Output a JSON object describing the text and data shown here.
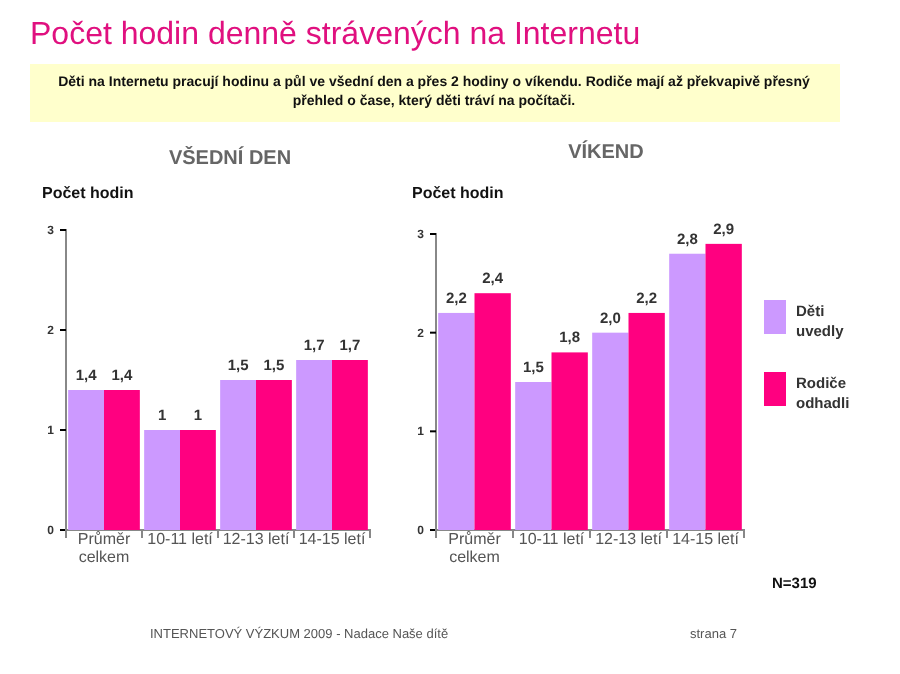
{
  "chart_data": [
    {
      "type": "bar",
      "title": "VŠEDNÍ DEN",
      "ylabel": "Počet hodin",
      "categories": [
        "Průměr celkem",
        "10-11 letí",
        "12-13 letí",
        "14-15 letí"
      ],
      "series": [
        {
          "color": "#cc99ff",
          "values": [
            1.4,
            1,
            1.5,
            1.7
          ],
          "value_labels": [
            "1,4",
            "1",
            "1,5",
            "1,7"
          ]
        },
        {
          "color": "#ff0080",
          "values": [
            1.4,
            1,
            1.5,
            1.7
          ],
          "value_labels": [
            "1,4",
            "1",
            "1,5",
            "1,7"
          ]
        }
      ],
      "ylim": [
        0,
        3
      ],
      "yticks": [
        0,
        1,
        2,
        3
      ],
      "grid": false,
      "legend": false,
      "annotations": [
        "Počet hodin denně strávených na Internetu",
        "Děti na Internetu pracují hodinu a půl ve všední den a přes 2 hodiny o víkendu. Rodiče mají až překvapivě přesný přehled o čase, který děti tráví na počítači.",
        "INTERNETOVÝ VÝZKUM 2009 - Nadace Naše dítě",
        "strana 7"
      ]
    },
    {
      "type": "bar",
      "title": "VÍKEND",
      "ylabel": "Počet hodin",
      "categories": [
        "Průměr celkem",
        "10-11 letí",
        "12-13 letí",
        "14-15 letí"
      ],
      "series": [
        {
          "name": "Děti uvedly",
          "color": "#cc99ff",
          "values": [
            2.2,
            1.5,
            2.0,
            2.8
          ],
          "value_labels": [
            "2,2",
            "1,5",
            "2,0",
            "2,8"
          ]
        },
        {
          "name": "Rodiče odhadli",
          "color": "#ff0080",
          "values": [
            2.4,
            1.8,
            2.2,
            2.9
          ],
          "value_labels": [
            "2,4",
            "1,8",
            "2,2",
            "2,9"
          ]
        }
      ],
      "ylim": [
        0,
        3
      ],
      "yticks": [
        0,
        1,
        2,
        3
      ],
      "grid": false,
      "legend": "right",
      "annotations": [
        "N=319"
      ]
    }
  ]
}
